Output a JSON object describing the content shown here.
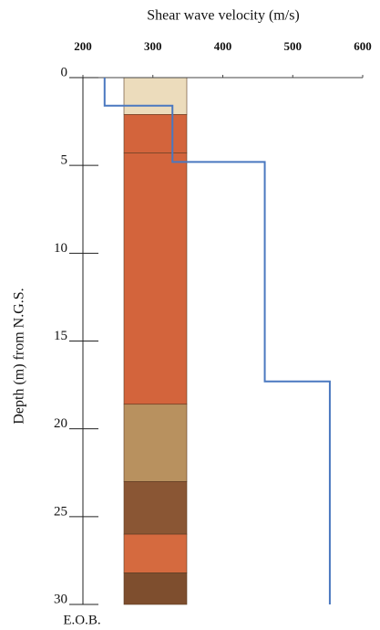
{
  "chart_data": {
    "type": "step",
    "x_label": "Shear wave velocity (m/s)",
    "y_label": "Depth (m)  from N.G.S.",
    "annotation": "E.O.B.",
    "xlim": [
      200,
      600
    ],
    "xticks": [
      200,
      300,
      400,
      500,
      600
    ],
    "ylim": [
      0,
      30
    ],
    "yticks": [
      0,
      5,
      10,
      15,
      20,
      25,
      30
    ],
    "y_inverted": true,
    "series": [
      {
        "color": "#4a78c0",
        "x": [
          231,
          231,
          328,
          328,
          460,
          460,
          553,
          553
        ],
        "values": [
          0,
          1.6,
          1.6,
          4.8,
          4.8,
          17.3,
          17.3,
          30
        ]
      }
    ],
    "soil_layers": [
      {
        "top": 0,
        "bottom": 2.1,
        "color": "#ecdcbc"
      },
      {
        "top": 2.1,
        "bottom": 4.3,
        "color": "#d3643c"
      },
      {
        "top": 4.3,
        "bottom": 18.6,
        "color": "#d3643c"
      },
      {
        "top": 18.6,
        "bottom": 23,
        "color": "#b8915f"
      },
      {
        "top": 23,
        "bottom": 26,
        "color": "#8a5634"
      },
      {
        "top": 26,
        "bottom": 28.2,
        "color": "#d56a3f"
      },
      {
        "top": 28.2,
        "bottom": 30,
        "color": "#7e4e2e"
      }
    ]
  }
}
